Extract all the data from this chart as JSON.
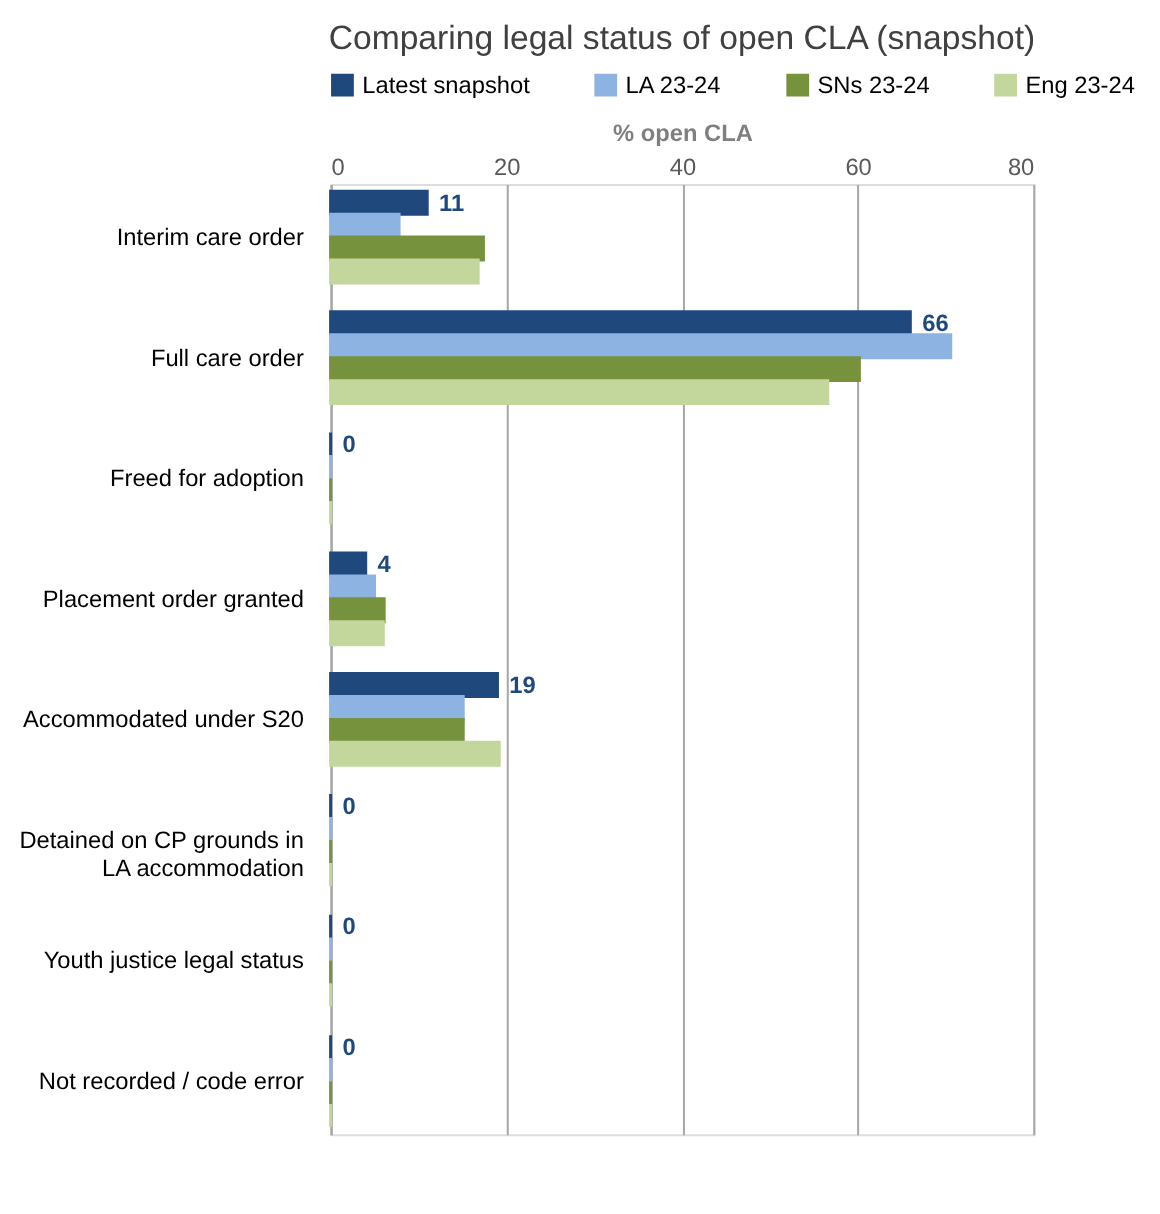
{
  "chart_data": {
    "type": "bar",
    "orientation": "horizontal",
    "title": "Comparing legal status of open CLA (snapshot)",
    "xlabel": "% open CLA",
    "categories": [
      "Interim care order",
      "Full care order",
      "Freed for adoption",
      "Placement order granted",
      "Accommodated under S20",
      "Detained on CP grounds in LA accommodation",
      "Youth justice legal status",
      "Not recorded / code error"
    ],
    "series": [
      {
        "name": "Latest snapshot",
        "color": "#1f497d",
        "values": [
          11,
          66,
          0,
          4,
          19,
          0,
          0,
          0
        ],
        "value_labels": [
          "11",
          "66",
          "0",
          "4",
          "19",
          "0",
          "0",
          "0"
        ]
      },
      {
        "name": "LA 23-24",
        "color": "#8db3e2",
        "values": [
          7.8,
          70.6,
          0,
          5,
          15.1,
          0,
          0,
          0
        ]
      },
      {
        "name": "SNs 23-24",
        "color": "#76923c",
        "values": [
          17.4,
          60.2,
          0,
          6.1,
          15.1,
          0,
          0,
          0
        ]
      },
      {
        "name": "Eng 23-24",
        "color": "#c3d69b",
        "values": [
          16.8,
          56.6,
          0,
          6,
          19.2,
          0,
          0,
          0
        ]
      }
    ],
    "xlim": [
      0,
      80
    ],
    "xticks": [
      0,
      20,
      40,
      60,
      80
    ],
    "grid": "x",
    "legend": "top"
  }
}
